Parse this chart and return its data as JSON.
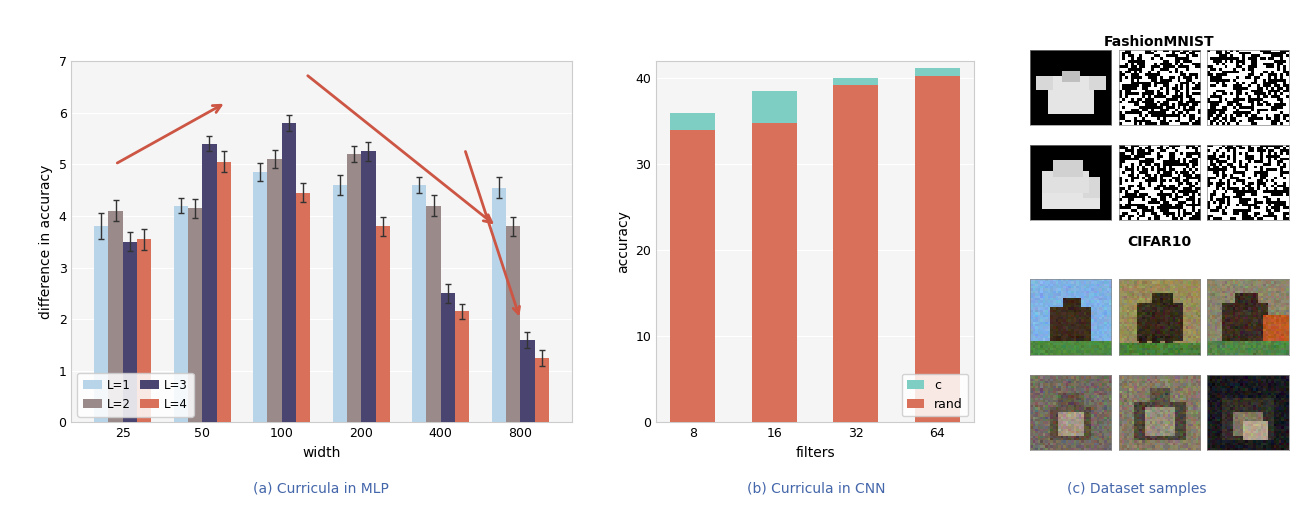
{
  "mlp_widths": [
    25,
    50,
    100,
    200,
    400,
    800
  ],
  "mlp_data": {
    "L1": {
      "means": [
        3.8,
        4.2,
        4.85,
        4.6,
        4.6,
        4.55
      ],
      "errs": [
        0.25,
        0.15,
        0.18,
        0.2,
        0.15,
        0.2
      ]
    },
    "L2": {
      "means": [
        4.1,
        4.15,
        5.1,
        5.2,
        4.2,
        3.8
      ],
      "errs": [
        0.2,
        0.18,
        0.18,
        0.15,
        0.2,
        0.18
      ]
    },
    "L3": {
      "means": [
        3.5,
        5.4,
        5.8,
        5.25,
        2.5,
        1.6
      ],
      "errs": [
        0.18,
        0.15,
        0.15,
        0.18,
        0.18,
        0.15
      ]
    },
    "L4": {
      "means": [
        3.55,
        5.05,
        4.45,
        3.8,
        2.15,
        1.25
      ],
      "errs": [
        0.2,
        0.2,
        0.18,
        0.18,
        0.15,
        0.15
      ]
    }
  },
  "mlp_colors": [
    "#b8d4e8",
    "#9b8a8a",
    "#4a4570",
    "#d9715a"
  ],
  "mlp_labels": [
    "L=1",
    "L=2",
    "L=3",
    "L=4"
  ],
  "cnn_filters": [
    "8",
    "16",
    "32",
    "64"
  ],
  "cnn_rand": [
    34.0,
    34.8,
    39.2,
    40.3
  ],
  "cnn_curriculum": [
    36.0,
    38.5,
    40.0,
    41.2
  ],
  "cnn_color_c": "#7ecec4",
  "cnn_color_rand": "#d9715a",
  "arrow_color": "#cc5544",
  "fig_bg": "#ffffff",
  "subplot_a_caption": "(a) Curricula in MLP",
  "subplot_b_caption": "(b) Curricula in CNN",
  "subplot_c_caption": "(c) Dataset samples",
  "fashion_title": "FashionMNIST",
  "cifar_title": "CIFAR10",
  "mlp_ylabel": "difference in accuracy",
  "mlp_xlabel": "width",
  "cnn_ylabel": "accuracy",
  "cnn_xlabel": "filters",
  "mlp_ylim": [
    0,
    7
  ],
  "cnn_ylim": [
    0,
    42
  ],
  "caption_color": "#4466aa"
}
